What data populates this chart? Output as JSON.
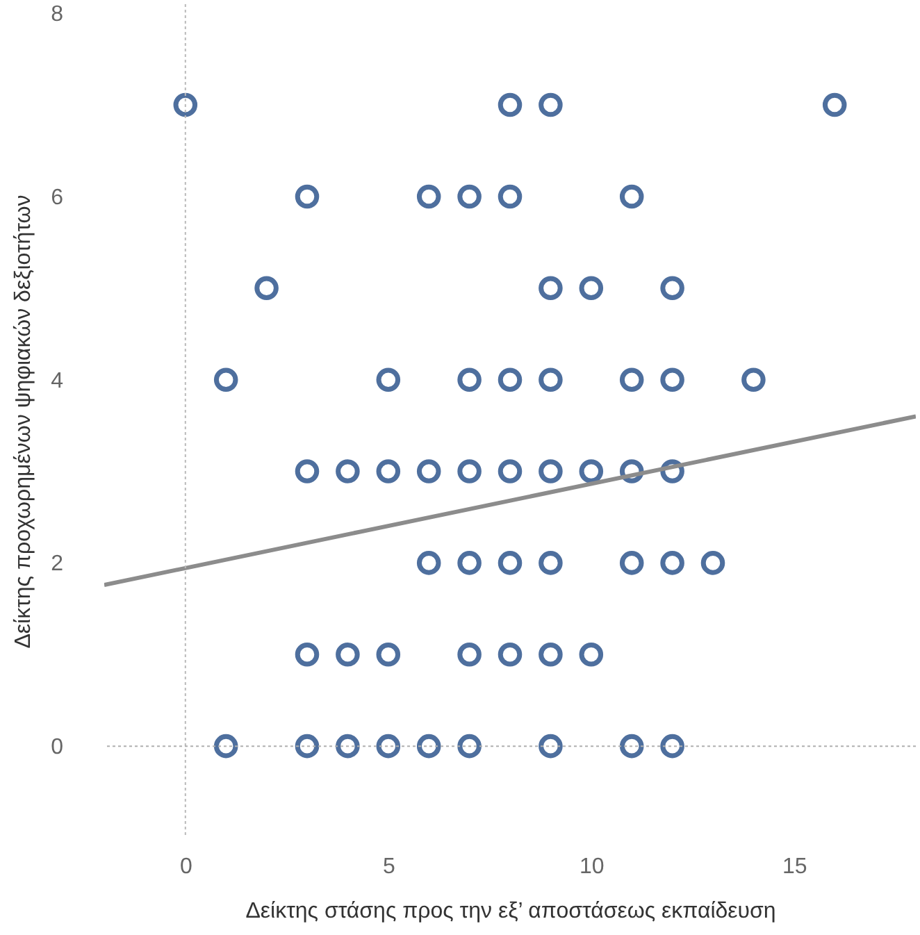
{
  "chart_data": {
    "type": "scatter",
    "xlabel": "Δείκτης στάσης προς την εξ’ αποστάσεως εκπαίδευση",
    "ylabel": "Δείκτης προχωρημένων ψηφιακών δεξιοτήτων",
    "xlim": [
      -2,
      18
    ],
    "ylim": [
      -1,
      8.1
    ],
    "xticks": [
      0,
      5,
      10,
      15
    ],
    "yticks": [
      0,
      2,
      4,
      6,
      8
    ],
    "grid": false,
    "series": [
      {
        "marker": "circle",
        "color": "#4e6f9e",
        "x": [
          0,
          8,
          9,
          16,
          3,
          6,
          7,
          8,
          11,
          2,
          9,
          10,
          12,
          1,
          5,
          7,
          8,
          9,
          11,
          12,
          14,
          3,
          4,
          5,
          6,
          7,
          8,
          9,
          10,
          11,
          12,
          6,
          7,
          8,
          9,
          11,
          12,
          13,
          3,
          4,
          5,
          7,
          8,
          9,
          10,
          1,
          3,
          4,
          5,
          6,
          7,
          9,
          11,
          12
        ],
        "values": [
          7,
          7,
          7,
          7,
          6,
          6,
          6,
          6,
          6,
          5,
          5,
          5,
          5,
          4,
          4,
          4,
          4,
          4,
          4,
          4,
          4,
          3,
          3,
          3,
          3,
          3,
          3,
          3,
          3,
          3,
          3,
          2,
          2,
          2,
          2,
          2,
          2,
          2,
          1,
          1,
          1,
          1,
          1,
          1,
          1,
          0,
          0,
          0,
          0,
          0,
          0,
          0,
          0,
          0
        ]
      },
      {
        "type": "line",
        "marker": "none",
        "color": "#8c8c8c",
        "x": [
          -2,
          18
        ],
        "values": [
          1.76,
          3.6
        ]
      }
    ],
    "ref_lines": [
      {
        "axis": "x",
        "value": 0,
        "color": "#bababa",
        "line_style": "dotted"
      },
      {
        "axis": "y",
        "value": 0,
        "color": "#b0b0b0",
        "line_style": "dotted"
      }
    ]
  }
}
